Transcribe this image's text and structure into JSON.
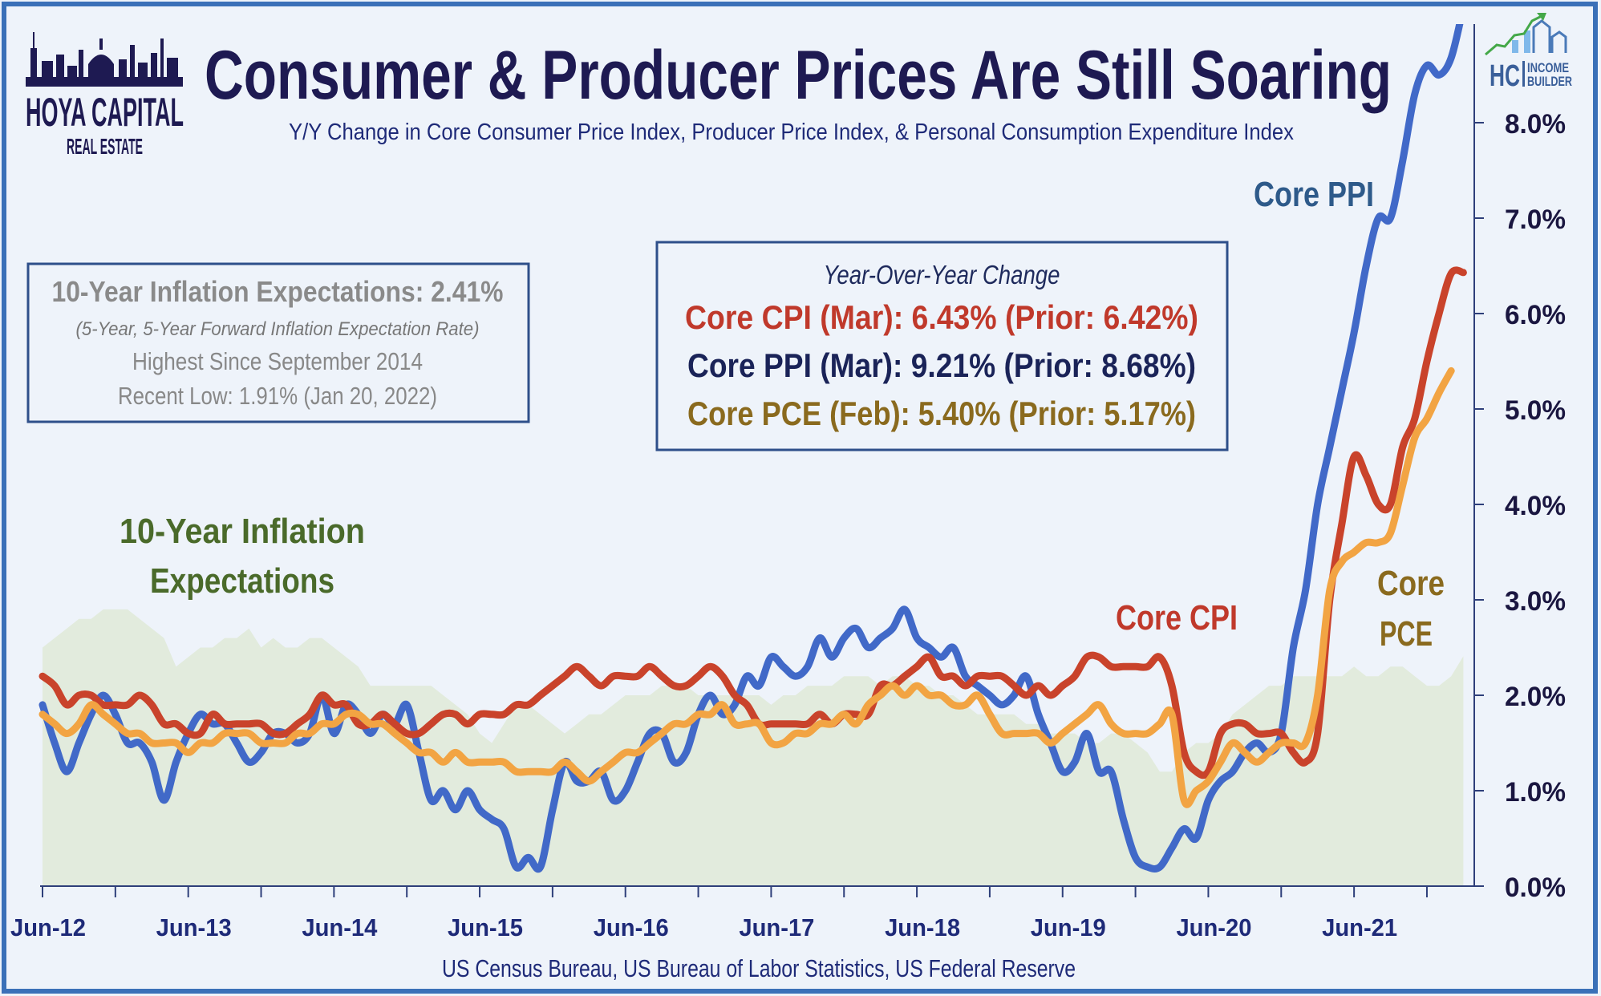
{
  "title": "Consumer & Producer Prices Are Still Soaring",
  "subtitle": "Y/Y Change in Core Consumer Price Index, Producer Price Index, & Personal Consumption Expenditure Index",
  "logo_left": {
    "line1": "HOYA CAPITAL",
    "line2": "REAL ESTATE"
  },
  "logo_right": {
    "mark": "HC",
    "line1": "INCOME",
    "line2": "BUILDER"
  },
  "expectations_box": {
    "headline": "10-Year Inflation Expectations: 2.41%",
    "note": "(5-Year, 5-Year Forward Inflation Expectation Rate)",
    "line3": "Highest Since September 2014",
    "line4": "Recent Low: 1.91% (Jan 20, 2022)"
  },
  "yoy_box": {
    "heading": "Year-Over-Year Change",
    "cpi": "Core CPI (Mar):  6.43% (Prior: 6.42%)",
    "ppi": "Core PPI (Mar): 9.21% (Prior: 8.68%)",
    "pce": "Core PCE (Feb): 5.40% (Prior: 5.17%)"
  },
  "annotations": {
    "expectations_line1": "10-Year Inflation",
    "expectations_line2": "Expectations",
    "ppi": "Core PPI",
    "cpi": "Core CPI",
    "pce_line1": "Core",
    "pce_line2": "PCE"
  },
  "source": "US Census Bureau, US Bureau of Labor Statistics, US Federal Reserve",
  "colors": {
    "ppi": "#4169c8",
    "cpi": "#c9432b",
    "pce": "#f2a443",
    "expectations_fill": "#e2ebdd",
    "title": "#1e1a52",
    "frame": "#3a70b8"
  },
  "chart_data": {
    "type": "line",
    "x_start": "Jun-12",
    "x_frequency": "monthly",
    "x_tick_labels": [
      "Jun-12",
      "Jun-13",
      "Jun-14",
      "Jun-15",
      "Jun-16",
      "Jun-17",
      "Jun-18",
      "Jun-19",
      "Jun-20",
      "Jun-21"
    ],
    "y_tick_labels": [
      "0.0%",
      "1.0%",
      "2.0%",
      "3.0%",
      "4.0%",
      "5.0%",
      "6.0%",
      "7.0%",
      "8.0%"
    ],
    "ylim": [
      0,
      9
    ],
    "y_axis_side": "right",
    "grid": false,
    "series": [
      {
        "name": "10-Year Inflation Expectations",
        "style": "area",
        "color": "#e2ebdd",
        "values": [
          2.5,
          2.6,
          2.7,
          2.8,
          2.8,
          2.9,
          2.9,
          2.9,
          2.8,
          2.7,
          2.6,
          2.3,
          2.4,
          2.5,
          2.5,
          2.6,
          2.6,
          2.7,
          2.5,
          2.6,
          2.5,
          2.5,
          2.6,
          2.6,
          2.5,
          2.4,
          2.3,
          2.1,
          2.1,
          2.1,
          2.1,
          2.1,
          2.1,
          2.0,
          1.9,
          1.8,
          1.6,
          1.5,
          1.7,
          1.9,
          1.9,
          1.8,
          1.7,
          1.6,
          1.7,
          1.8,
          1.8,
          1.9,
          2.0,
          2.0,
          2.0,
          2.1,
          2.1,
          2.1,
          2.0,
          2.0,
          2.0,
          2.0,
          2.0,
          2.0,
          1.9,
          2.0,
          2.0,
          2.1,
          2.1,
          2.1,
          2.2,
          2.2,
          2.2,
          2.1,
          2.2,
          2.2,
          2.1,
          2.1,
          2.0,
          2.0,
          1.9,
          1.8,
          1.8,
          1.8,
          1.8,
          1.7,
          1.7,
          1.6,
          1.6,
          1.6,
          1.5,
          1.5,
          1.6,
          1.6,
          1.5,
          1.4,
          1.2,
          1.2,
          1.4,
          1.5,
          1.5,
          1.6,
          1.8,
          1.9,
          2.0,
          2.1,
          2.1,
          2.2,
          2.2,
          2.2,
          2.2,
          2.2,
          2.3,
          2.2,
          2.2,
          2.3,
          2.3,
          2.2,
          2.1,
          2.1,
          2.2,
          2.41
        ]
      },
      {
        "name": "Core PPI",
        "style": "line",
        "color": "#4169c8",
        "values": [
          1.9,
          1.5,
          1.2,
          1.5,
          1.8,
          2.0,
          1.8,
          1.5,
          1.5,
          1.3,
          0.9,
          1.3,
          1.6,
          1.8,
          1.7,
          1.7,
          1.5,
          1.3,
          1.4,
          1.6,
          1.6,
          1.5,
          1.6,
          2.0,
          1.6,
          1.9,
          1.8,
          1.6,
          1.8,
          1.7,
          1.9,
          1.4,
          0.9,
          1.0,
          0.8,
          1.0,
          0.8,
          0.7,
          0.6,
          0.2,
          0.3,
          0.2,
          0.8,
          1.3,
          1.1,
          1.1,
          1.2,
          0.9,
          1.0,
          1.3,
          1.6,
          1.6,
          1.3,
          1.4,
          1.8,
          2.0,
          1.8,
          1.9,
          2.2,
          2.1,
          2.4,
          2.3,
          2.2,
          2.3,
          2.6,
          2.4,
          2.6,
          2.7,
          2.5,
          2.6,
          2.7,
          2.9,
          2.6,
          2.5,
          2.4,
          2.5,
          2.2,
          2.1,
          2.0,
          1.9,
          2.0,
          2.2,
          1.8,
          1.5,
          1.2,
          1.3,
          1.6,
          1.2,
          1.2,
          0.7,
          0.3,
          0.2,
          0.2,
          0.4,
          0.6,
          0.5,
          0.9,
          1.1,
          1.2,
          1.4,
          1.5,
          1.4,
          1.6,
          2.5,
          3.1,
          4.0,
          4.6,
          5.2,
          5.8,
          6.5,
          7.0,
          7.0,
          7.6,
          8.3,
          8.6,
          8.5,
          8.68,
          9.21
        ]
      },
      {
        "name": "Core CPI",
        "style": "line",
        "color": "#c9432b",
        "values": [
          2.2,
          2.1,
          1.9,
          2.0,
          2.0,
          1.9,
          1.9,
          1.9,
          2.0,
          1.9,
          1.7,
          1.7,
          1.6,
          1.6,
          1.8,
          1.7,
          1.7,
          1.7,
          1.7,
          1.6,
          1.6,
          1.7,
          1.8,
          2.0,
          1.9,
          1.9,
          1.7,
          1.7,
          1.8,
          1.7,
          1.6,
          1.6,
          1.7,
          1.8,
          1.8,
          1.7,
          1.8,
          1.8,
          1.8,
          1.9,
          1.9,
          2.0,
          2.1,
          2.2,
          2.3,
          2.2,
          2.1,
          2.2,
          2.2,
          2.2,
          2.3,
          2.2,
          2.1,
          2.1,
          2.2,
          2.3,
          2.2,
          2.0,
          1.9,
          1.7,
          1.7,
          1.7,
          1.7,
          1.7,
          1.8,
          1.7,
          1.8,
          1.8,
          1.8,
          2.1,
          2.1,
          2.2,
          2.3,
          2.4,
          2.2,
          2.2,
          2.1,
          2.2,
          2.2,
          2.2,
          2.1,
          2.0,
          2.1,
          2.0,
          2.1,
          2.2,
          2.4,
          2.4,
          2.3,
          2.3,
          2.3,
          2.3,
          2.4,
          2.1,
          1.4,
          1.2,
          1.2,
          1.6,
          1.7,
          1.7,
          1.6,
          1.6,
          1.6,
          1.4,
          1.3,
          1.6,
          3.0,
          3.8,
          4.5,
          4.3,
          4.0,
          4.0,
          4.6,
          4.9,
          5.5,
          6.0,
          6.42,
          6.43
        ]
      },
      {
        "name": "Core PCE",
        "style": "line",
        "color": "#f2a443",
        "values": [
          1.8,
          1.7,
          1.6,
          1.7,
          1.9,
          1.8,
          1.7,
          1.6,
          1.6,
          1.5,
          1.5,
          1.5,
          1.4,
          1.5,
          1.5,
          1.6,
          1.6,
          1.6,
          1.5,
          1.5,
          1.5,
          1.6,
          1.6,
          1.7,
          1.7,
          1.8,
          1.8,
          1.7,
          1.7,
          1.6,
          1.5,
          1.4,
          1.4,
          1.3,
          1.4,
          1.3,
          1.3,
          1.3,
          1.3,
          1.2,
          1.2,
          1.2,
          1.2,
          1.3,
          1.2,
          1.1,
          1.2,
          1.3,
          1.4,
          1.4,
          1.5,
          1.6,
          1.7,
          1.7,
          1.8,
          1.8,
          1.9,
          1.7,
          1.7,
          1.7,
          1.5,
          1.5,
          1.6,
          1.6,
          1.7,
          1.7,
          1.8,
          1.7,
          1.9,
          2.0,
          2.1,
          2.0,
          2.1,
          2.0,
          2.0,
          1.9,
          1.9,
          2.0,
          1.8,
          1.6,
          1.6,
          1.6,
          1.6,
          1.5,
          1.6,
          1.7,
          1.8,
          1.9,
          1.7,
          1.6,
          1.6,
          1.6,
          1.7,
          1.8,
          0.9,
          1.0,
          1.1,
          1.3,
          1.5,
          1.4,
          1.3,
          1.4,
          1.5,
          1.5,
          1.5,
          2.0,
          3.1,
          3.4,
          3.5,
          3.6,
          3.6,
          3.7,
          4.2,
          4.7,
          4.9,
          5.17,
          5.4
        ]
      }
    ]
  }
}
